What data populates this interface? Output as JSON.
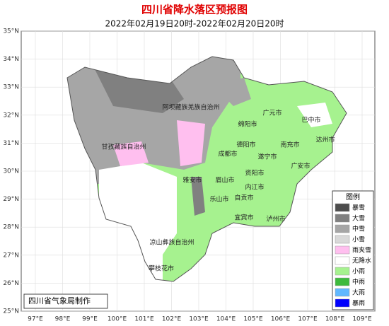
{
  "title": "四川省降水落区预报图",
  "subtitle": "2022年02月19日20时-2022年02月20日20时",
  "lat_labels": [
    "35°N",
    "34°N",
    "33°N",
    "32°N",
    "31°N",
    "30°N",
    "29°N",
    "28°N",
    "27°N",
    "26°N",
    "25°N"
  ],
  "lon_labels": [
    "97°E",
    "98°E",
    "99°E",
    "100°E",
    "101°E",
    "102°E",
    "103°E",
    "104°E",
    "105°E",
    "106°E",
    "107°E",
    "108°E",
    "109°E"
  ],
  "places": [
    "阿坝藏族羌族自治州",
    "广元市",
    "巴中市",
    "绵阳市",
    "甘孜藏族自治州",
    "德阳市",
    "南充市",
    "达州市",
    "成都市",
    "遂宁市",
    "广安市",
    "雅安市",
    "眉山市",
    "资阳市",
    "内江市",
    "自贡市",
    "乐山市",
    "宜宾市",
    "泸州市",
    "凉山彝族自治州",
    "攀枝花市"
  ],
  "legend": {
    "title": "图例",
    "items": [
      {
        "label": "暴雪",
        "color": "#4d4d4d"
      },
      {
        "label": "大雪",
        "color": "#808080"
      },
      {
        "label": "中雪",
        "color": "#a6a6a6"
      },
      {
        "label": "小雪",
        "color": "#d9d9d9"
      },
      {
        "label": "雨夹雪",
        "color": "#ffbfef"
      },
      {
        "label": "无降水",
        "color": "#ffffff"
      },
      {
        "label": "小雨",
        "color": "#a6f28f"
      },
      {
        "label": "中雨",
        "color": "#3dba3d"
      },
      {
        "label": "大雨",
        "color": "#61b8ff"
      },
      {
        "label": "暴雨",
        "color": "#0000fe"
      }
    ]
  },
  "credit": "四川省气象局制作"
}
